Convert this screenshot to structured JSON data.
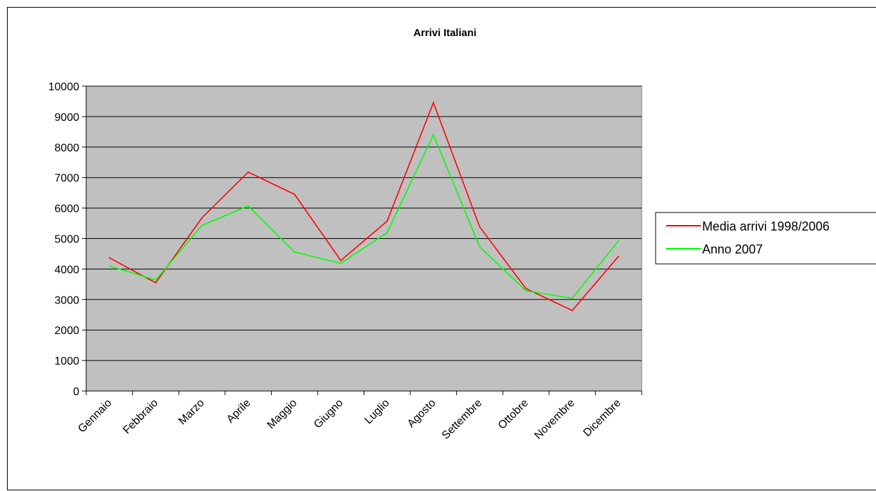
{
  "chart_data": {
    "type": "line",
    "title": "Arrivi Italiani",
    "xlabel": "",
    "ylabel": "",
    "categories": [
      "Gennaio",
      "Febbraio",
      "Marzo",
      "Aprile",
      "Maggio",
      "Giugno",
      "Luglio",
      "Agosto",
      "Settembre",
      "Ottobre",
      "Novembre",
      "Dicembre"
    ],
    "series": [
      {
        "name": "Media arrivi 1998/2006",
        "color": "#ff0000",
        "values": [
          4370,
          3550,
          5680,
          7180,
          6450,
          4280,
          5570,
          9460,
          5380,
          3360,
          2640,
          4420
        ]
      },
      {
        "name": "Anno 2007",
        "color": "#00ff00",
        "values": [
          4100,
          3640,
          5430,
          6070,
          4560,
          4190,
          5190,
          8400,
          4730,
          3290,
          3040,
          4930
        ]
      }
    ],
    "ylim": [
      0,
      10000
    ],
    "yticks": [
      0,
      1000,
      2000,
      3000,
      4000,
      5000,
      6000,
      7000,
      8000,
      9000,
      10000
    ],
    "grid": true,
    "plot_background": "#c0c0c0",
    "legend_position": "right"
  }
}
